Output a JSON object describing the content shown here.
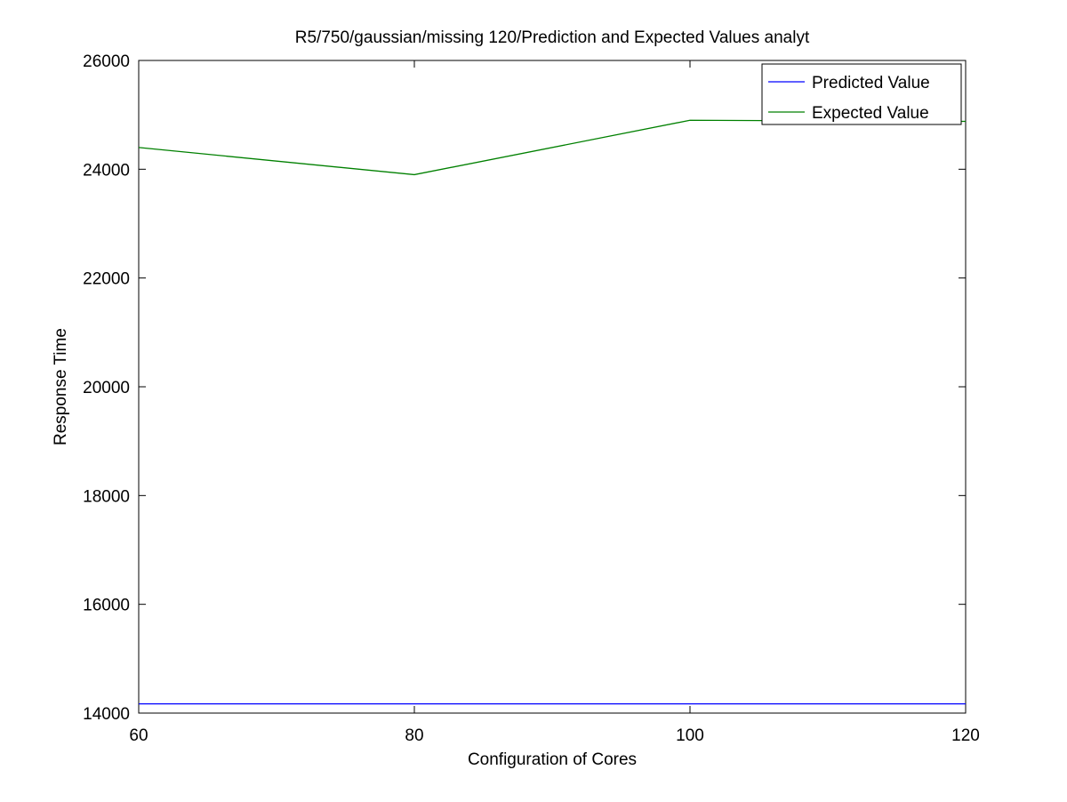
{
  "chart_data": {
    "type": "line",
    "title": "R5/750/gaussian/missing 120/Prediction and Expected Values analyt",
    "xlabel": "Configuration of Cores",
    "ylabel": "Response Time",
    "xlim": [
      60,
      120
    ],
    "ylim": [
      14000,
      26000
    ],
    "x_ticks": [
      60,
      80,
      100,
      120
    ],
    "y_ticks": [
      14000,
      16000,
      18000,
      20000,
      22000,
      24000,
      26000
    ],
    "x_tick_labels": [
      "60",
      "80",
      "100",
      "120"
    ],
    "y_tick_labels": [
      "14000",
      "16000",
      "18000",
      "20000",
      "22000",
      "24000",
      "26000"
    ],
    "x": [
      60,
      80,
      100,
      120
    ],
    "grid": false,
    "legend_position": "top-right",
    "series": [
      {
        "name": "Predicted Value",
        "color": "#0000ff",
        "values": [
          14170,
          14170,
          14170,
          14170
        ]
      },
      {
        "name": "Expected Value",
        "color": "#008000",
        "values": [
          24400,
          23900,
          24900,
          24880
        ]
      }
    ]
  }
}
